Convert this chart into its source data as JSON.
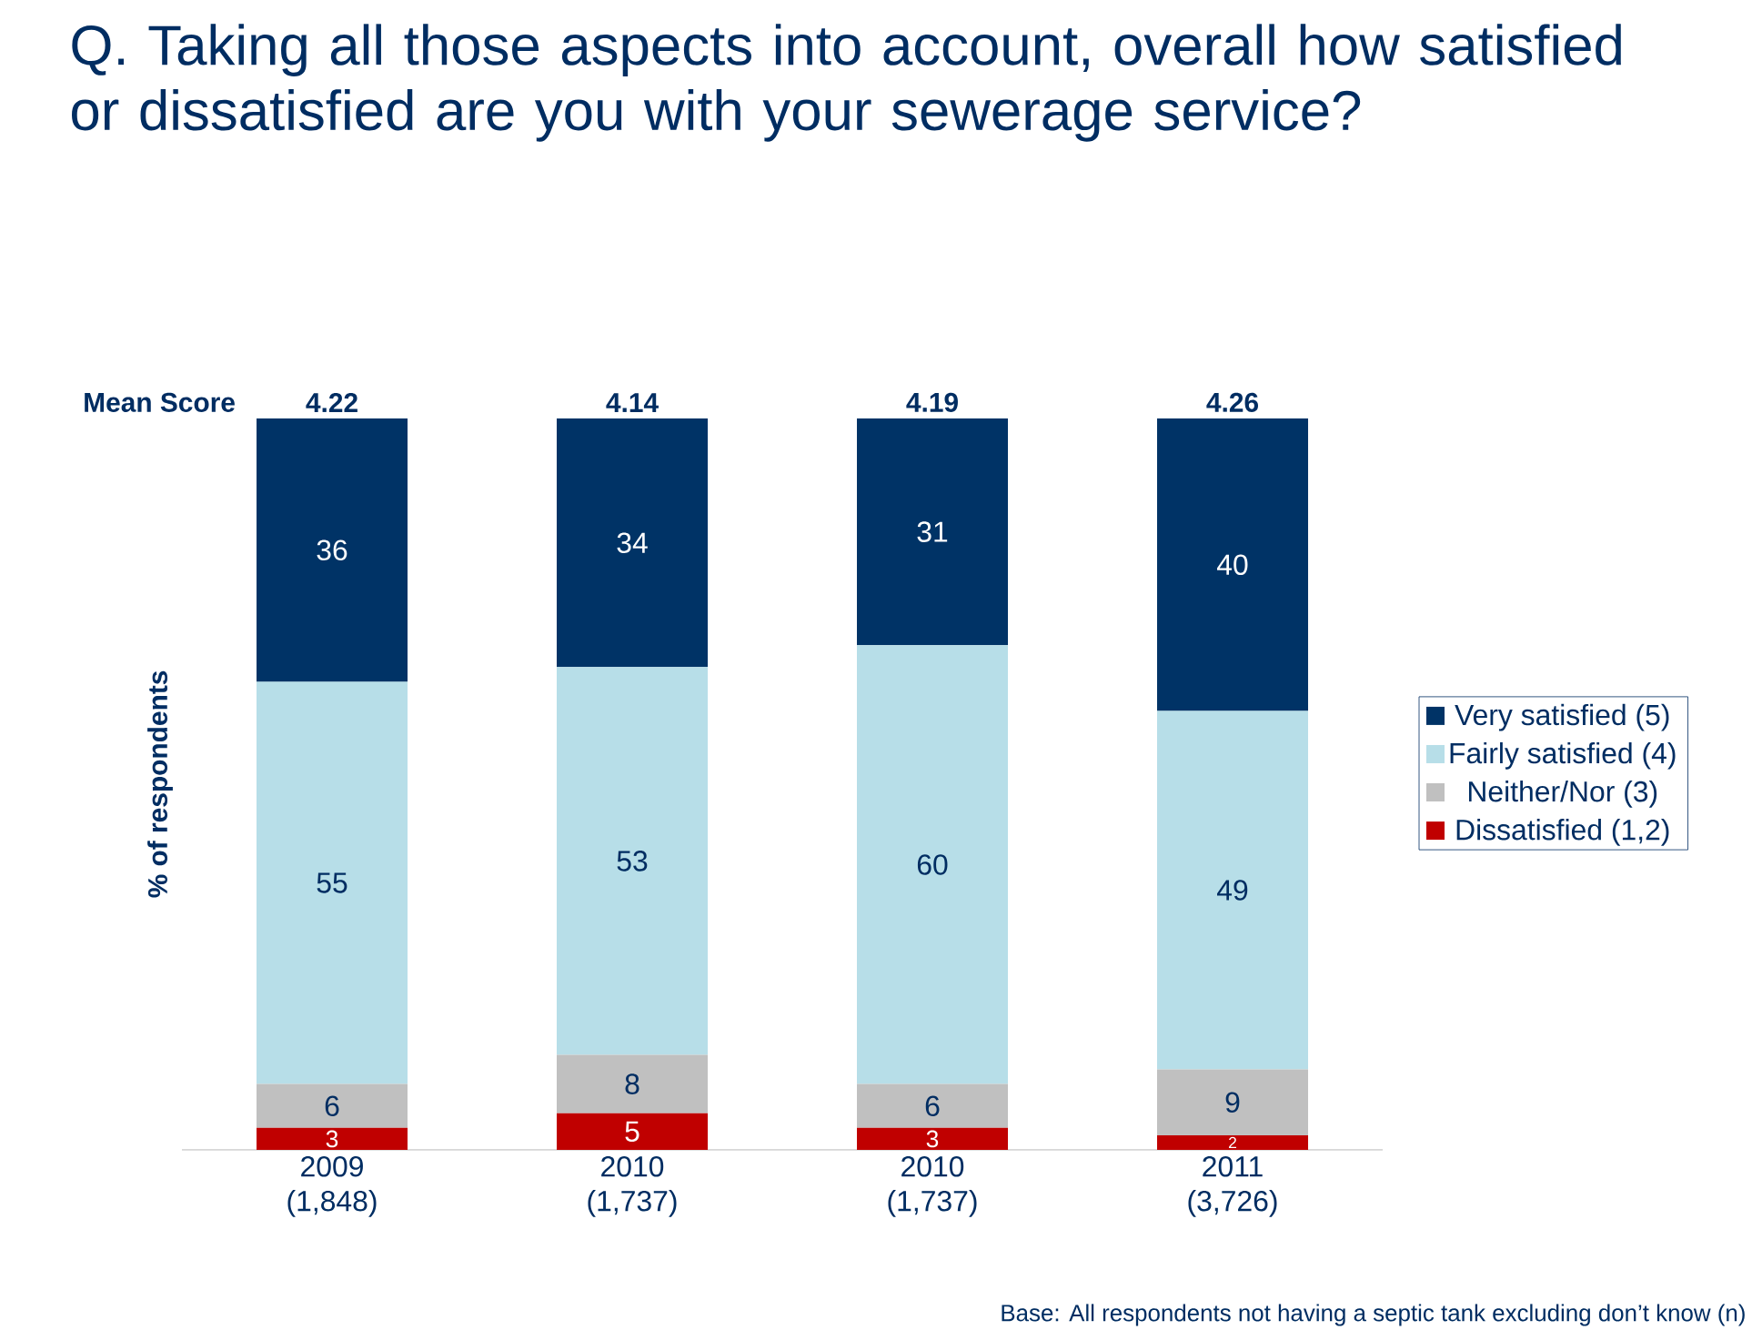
{
  "chart_data": {
    "type": "bar",
    "stacked": true,
    "title": "Q. Taking all those aspects into account, overall how satisfied or dissatisfied are you with your sewerage service?",
    "ylabel": "% of respondents",
    "categories": [
      "2009 (1,848)",
      "2010 (1,737)",
      "2010 (1,737)",
      "2011 (3,726)"
    ],
    "series": [
      {
        "name": "Dissatisfied (1,2)",
        "color": "#c00000",
        "values": [
          3,
          5,
          3,
          2
        ]
      },
      {
        "name": "Neither/Nor (3)",
        "color": "#c0c0c0",
        "values": [
          6,
          8,
          6,
          9
        ]
      },
      {
        "name": "Fairly satisfied (4)",
        "color": "#b7dee8",
        "values": [
          55,
          53,
          60,
          49
        ]
      },
      {
        "name": "Very satisfied (5)",
        "color": "#003366",
        "values": [
          36,
          34,
          31,
          40
        ]
      }
    ],
    "ylim": [
      0,
      100
    ],
    "tick_labels": "x",
    "data_labels": true,
    "legend": "right",
    "annotations": [
      "Mean Score",
      "4.22",
      "4.14",
      "4.19",
      "4.26",
      "Base: All respondents not having a septic tank excluding don’t know (n)"
    ]
  }
}
